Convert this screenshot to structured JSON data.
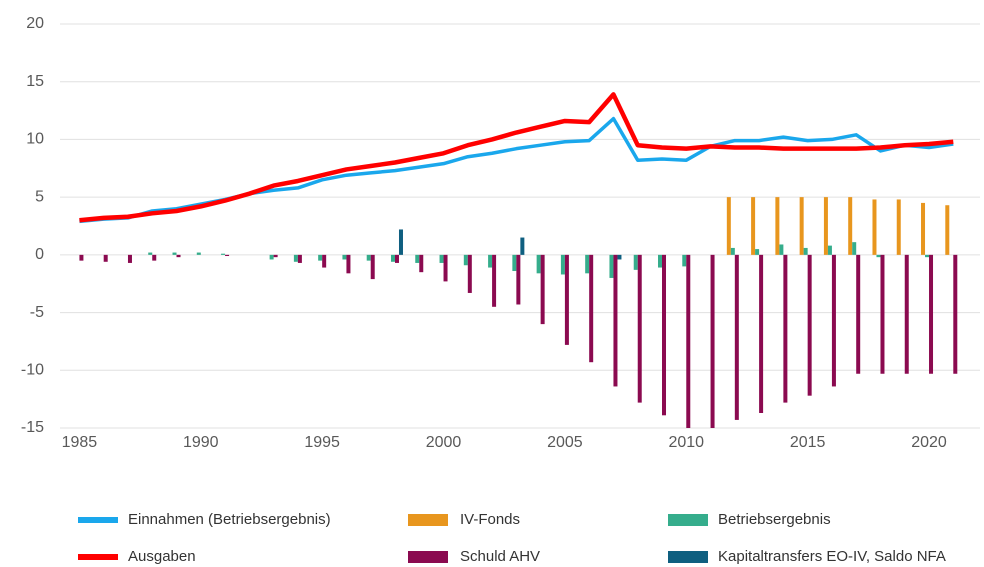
{
  "chart_data": {
    "type": "bar",
    "x": [
      1985,
      1986,
      1987,
      1988,
      1989,
      1990,
      1991,
      1992,
      1993,
      1994,
      1995,
      1996,
      1997,
      1998,
      1999,
      2000,
      2001,
      2002,
      2003,
      2004,
      2005,
      2006,
      2007,
      2008,
      2009,
      2010,
      2011,
      2012,
      2013,
      2014,
      2015,
      2016,
      2017,
      2018,
      2019,
      2020,
      2021
    ],
    "xlim": [
      1984.2,
      2022.1
    ],
    "xticks": [
      1985,
      1990,
      1995,
      2000,
      2005,
      2010,
      2015,
      2020
    ],
    "ylim": [
      -15,
      20
    ],
    "yticks": [
      -15,
      -10,
      -5,
      0,
      5,
      10,
      15,
      20
    ],
    "grid": true,
    "legend": "bottom",
    "series": [
      {
        "name": "Einnahmen (Betriebsergebnis)",
        "type": "line",
        "color": "#1aa7ec",
        "values": [
          2.9,
          3.1,
          3.2,
          3.8,
          4.0,
          4.4,
          4.8,
          5.3,
          5.6,
          5.8,
          6.5,
          6.9,
          7.1,
          7.3,
          7.6,
          7.9,
          8.5,
          8.8,
          9.2,
          9.5,
          9.8,
          9.9,
          11.8,
          8.2,
          8.3,
          8.2,
          9.4,
          9.9,
          9.9,
          10.2,
          9.9,
          10.0,
          10.4,
          9.0,
          9.5,
          9.3,
          9.6
        ]
      },
      {
        "name": "IV-Fonds",
        "type": "bar",
        "color": "#e8961e",
        "values": [
          null,
          null,
          null,
          null,
          null,
          null,
          null,
          null,
          null,
          null,
          null,
          null,
          null,
          null,
          null,
          null,
          null,
          null,
          null,
          null,
          null,
          null,
          null,
          null,
          null,
          null,
          null,
          5.0,
          5.0,
          5.0,
          5.0,
          5.0,
          5.0,
          4.8,
          4.8,
          4.5,
          4.3
        ]
      },
      {
        "name": "Betriebsergebnis",
        "type": "bar",
        "color": "#35ad8c",
        "values": [
          0,
          0,
          0,
          0.2,
          0.2,
          0.2,
          0.1,
          0,
          -0.4,
          -0.6,
          -0.5,
          -0.4,
          -0.5,
          -0.6,
          -0.7,
          -0.7,
          -0.9,
          -1.1,
          -1.4,
          -1.6,
          -1.7,
          -1.6,
          -2.0,
          -1.3,
          -1.1,
          -1.0,
          0,
          0.6,
          0.5,
          0.9,
          0.6,
          0.8,
          1.1,
          -0.2,
          0,
          -0.2,
          0
        ]
      },
      {
        "name": "Ausgaben",
        "type": "line",
        "color": "#ff0000",
        "values": [
          3.0,
          3.2,
          3.3,
          3.6,
          3.8,
          4.2,
          4.7,
          5.3,
          6.0,
          6.4,
          6.9,
          7.4,
          7.7,
          8.0,
          8.4,
          8.8,
          9.5,
          10.0,
          10.6,
          11.1,
          11.6,
          11.5,
          13.9,
          9.5,
          9.3,
          9.2,
          9.4,
          9.3,
          9.3,
          9.2,
          9.2,
          9.2,
          9.2,
          9.3,
          9.5,
          9.6,
          9.8
        ]
      },
      {
        "name": "Schuld AHV",
        "type": "bar",
        "color": "#8b0a50",
        "values": [
          -0.5,
          -0.6,
          -0.7,
          -0.5,
          -0.2,
          0,
          -0.1,
          0,
          -0.2,
          -0.7,
          -1.1,
          -1.6,
          -2.1,
          -0.7,
          -1.5,
          -2.3,
          -3.3,
          -4.5,
          -4.3,
          -6.0,
          -7.8,
          -9.3,
          -11.4,
          -12.8,
          -13.9,
          -15.0,
          -15.0,
          -14.3,
          -13.7,
          -12.8,
          -12.2,
          -11.4,
          -10.3,
          -10.3,
          -10.3,
          -10.3,
          -10.3
        ]
      },
      {
        "name": "Kapitaltransfers EO-IV, Saldo NFA",
        "type": "bar",
        "color": "#0f5f80",
        "values": [
          0,
          0,
          0,
          0,
          0,
          0,
          0,
          0,
          0,
          0,
          0,
          0,
          0,
          2.2,
          0,
          0,
          0,
          0,
          1.5,
          0,
          0,
          0,
          -0.4,
          0,
          0,
          0,
          0,
          0,
          0,
          0,
          0,
          0,
          0,
          0,
          0,
          0,
          0
        ]
      }
    ]
  }
}
